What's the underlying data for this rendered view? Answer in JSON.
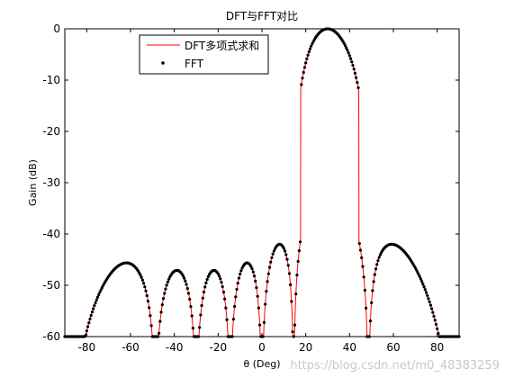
{
  "chart_data": {
    "type": "line",
    "title": "DFT与FFT对比",
    "xlabel": "θ (Deg)",
    "ylabel": "Gain (dB)",
    "xlim": [
      -90,
      90
    ],
    "ylim": [
      -60,
      0
    ],
    "x_ticks": [
      -80,
      -60,
      -40,
      -20,
      0,
      20,
      40,
      60,
      80
    ],
    "y_ticks": [
      0,
      -10,
      -20,
      -30,
      -40,
      -50,
      -60
    ],
    "grid": false,
    "legend_position": "top-left-center",
    "series": [
      {
        "name": "DFT多项式求和",
        "style": "line",
        "color": "#ff0000",
        "model": {
          "kind": "uniform-array-factor-dB",
          "elements": 8,
          "mainbeam_deg": 30,
          "x_range": [
            -90,
            90
          ],
          "floor_db": -60,
          "sidelobe_db": -42,
          "samples": 1801
        }
      },
      {
        "name": "FFT",
        "style": "markers",
        "marker": "dot",
        "color": "#000000",
        "model": {
          "kind": "uniform-array-factor-dB",
          "elements": 8,
          "mainbeam_deg": 30,
          "x_range": [
            -90,
            90
          ],
          "floor_db": -60,
          "sidelobe_db": -42,
          "samples": 361
        }
      }
    ]
  },
  "watermark": "https://blog.csdn.net/m0_48383259",
  "colors": {
    "dft": "#ff0000",
    "fft": "#000000",
    "watermark": "#c8c8c8"
  }
}
